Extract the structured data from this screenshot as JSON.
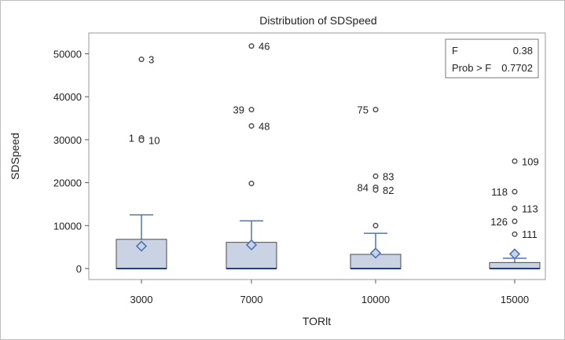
{
  "chart_data": {
    "type": "box",
    "title": "Distribution of SDSpeed",
    "xlabel": "TORlt",
    "ylabel": "SDSpeed",
    "ylim": [
      -2000,
      56000
    ],
    "yticks": [
      0,
      10000,
      20000,
      30000,
      40000,
      50000
    ],
    "yticklabels": [
      "0",
      "10000",
      "20000",
      "30000",
      "40000",
      "50000"
    ],
    "categories": [
      "3000",
      "7000",
      "10000",
      "15000"
    ],
    "boxes": [
      {
        "category": "3000",
        "q1": 0,
        "median": 0,
        "q3": 6800,
        "whisker_low": 0,
        "whisker_high": 12500,
        "mean": 5200
      },
      {
        "category": "7000",
        "q1": 0,
        "median": 0,
        "q3": 6100,
        "whisker_low": 0,
        "whisker_high": 11100,
        "mean": 5500
      },
      {
        "category": "10000",
        "q1": 0,
        "median": 0,
        "q3": 3300,
        "whisker_low": 0,
        "whisker_high": 8200,
        "mean": 3600
      },
      {
        "category": "15000",
        "q1": 0,
        "median": 0,
        "q3": 1400,
        "whisker_low": 0,
        "whisker_high": 2400,
        "mean": 3400
      }
    ],
    "outliers": [
      {
        "category": "3000",
        "y": 48700,
        "label": "3",
        "label_side": "right"
      },
      {
        "category": "3000",
        "y": 30400,
        "label": "1",
        "label_side": "left"
      },
      {
        "category": "3000",
        "y": 29900,
        "label": "10",
        "label_side": "right"
      },
      {
        "category": "7000",
        "y": 51800,
        "label": "46",
        "label_side": "right"
      },
      {
        "category": "7000",
        "y": 37000,
        "label": "39",
        "label_side": "left"
      },
      {
        "category": "7000",
        "y": 33200,
        "label": "48",
        "label_side": "right"
      },
      {
        "category": "7000",
        "y": 19800,
        "label": "",
        "label_side": "right"
      },
      {
        "category": "10000",
        "y": 37000,
        "label": "75",
        "label_side": "left"
      },
      {
        "category": "10000",
        "y": 21500,
        "label": "83",
        "label_side": "right"
      },
      {
        "category": "10000",
        "y": 18900,
        "label": "84",
        "label_side": "left"
      },
      {
        "category": "10000",
        "y": 18300,
        "label": "82",
        "label_side": "right"
      },
      {
        "category": "10000",
        "y": 10000,
        "label": "",
        "label_side": "right"
      },
      {
        "category": "15000",
        "y": 25000,
        "label": "109",
        "label_side": "right"
      },
      {
        "category": "15000",
        "y": 17900,
        "label": "118",
        "label_side": "left"
      },
      {
        "category": "15000",
        "y": 14000,
        "label": "113",
        "label_side": "right"
      },
      {
        "category": "15000",
        "y": 11000,
        "label": "126",
        "label_side": "left"
      },
      {
        "category": "15000",
        "y": 8000,
        "label": "111",
        "label_side": "right"
      }
    ],
    "inset": {
      "rows": [
        {
          "label": "F",
          "value": "0.38"
        },
        {
          "label": "Prob > F",
          "value": "0.7702"
        }
      ],
      "position": "top-right"
    },
    "colors": {
      "box_fill": "#c9d3e3",
      "box_edge": "#4a4a4a",
      "whisker": "#4f73b8",
      "mean_marker": "#4f73b8",
      "outlier": "#505050",
      "median": "#1f3f8f"
    },
    "grid": false
  }
}
